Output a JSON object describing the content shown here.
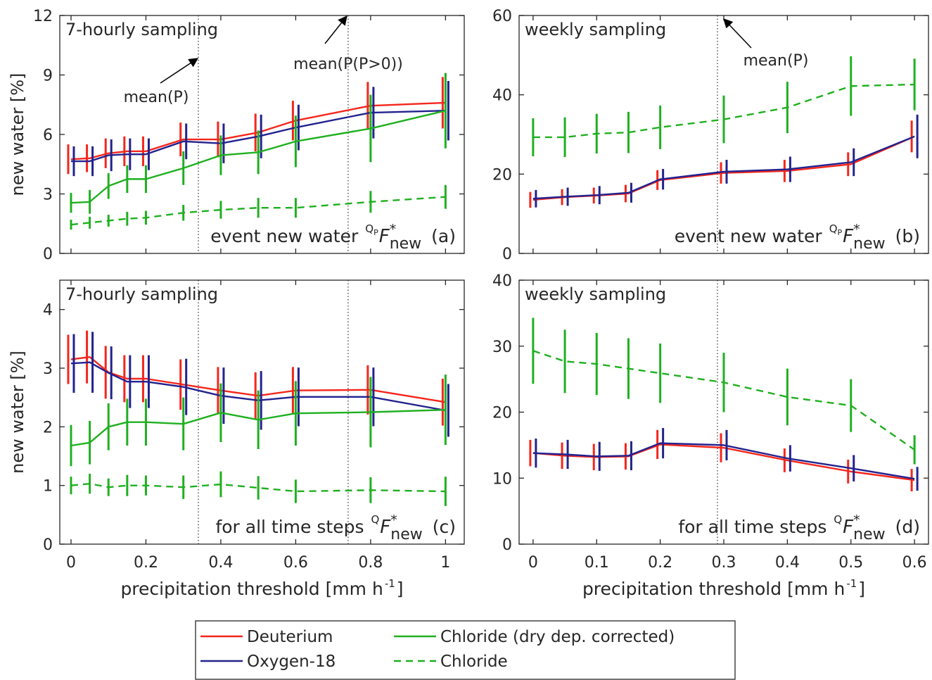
{
  "chart_data": [
    {
      "type": "line",
      "title": "7-hourly sampling",
      "ylabel": "new water [%]",
      "x": [
        0,
        0.05,
        0.1,
        0.15,
        0.2,
        0.3,
        0.4,
        0.5,
        0.6,
        0.8,
        1
      ],
      "xlim": [
        -0.03,
        1.05
      ],
      "xticks": [
        0,
        0.2,
        0.4,
        0.6,
        0.8,
        1
      ],
      "xtick_labels": false,
      "ylim": [
        0,
        12
      ],
      "yticks": [
        0,
        3,
        6,
        9,
        12
      ],
      "vlines": [
        0.34,
        0.74
      ],
      "annotations": [
        {
          "text": "mean(P)"
        },
        {
          "text": "mean(P(P>0))"
        }
      ],
      "panel_label": {
        "text": "event new water",
        "pre_sup": "Q",
        "pre_sup_sub": "P",
        "symbol": "F",
        "symbol_sup": "*",
        "symbol_sub": "new",
        "tag": "(a)"
      },
      "legend_position": "below",
      "series": [
        {
          "name": "Deuterium",
          "color": "#f5261c",
          "style": "solid",
          "values": [
            4.75,
            4.8,
            5.05,
            5.15,
            5.15,
            5.75,
            5.75,
            6.1,
            6.7,
            7.45,
            7.6
          ],
          "errors": [
            0.75,
            0.7,
            0.75,
            0.75,
            0.75,
            0.85,
            0.9,
            0.95,
            1.0,
            1.2,
            1.3
          ]
        },
        {
          "name": "Oxygen-18",
          "color": "#22228e",
          "style": "solid",
          "values": [
            4.65,
            4.65,
            4.95,
            5.0,
            5.0,
            5.65,
            5.55,
            5.9,
            6.35,
            7.1,
            7.2
          ],
          "errors": [
            0.75,
            0.75,
            0.8,
            0.8,
            0.8,
            0.9,
            1.0,
            1.1,
            1.15,
            1.3,
            1.5
          ]
        },
        {
          "name": "Chloride (dry dep. corrected)",
          "color": "#1fb01f",
          "style": "solid",
          "values": [
            2.55,
            2.6,
            3.4,
            3.75,
            3.75,
            4.3,
            4.95,
            5.1,
            5.65,
            6.3,
            7.2
          ],
          "errors": [
            0.5,
            0.6,
            0.65,
            0.7,
            0.7,
            0.85,
            1.0,
            1.1,
            1.3,
            1.7,
            1.9
          ]
        },
        {
          "name": "Chloride",
          "color": "#1fb01f",
          "style": "dashed",
          "values": [
            1.45,
            1.55,
            1.65,
            1.75,
            1.8,
            2.05,
            2.2,
            2.3,
            2.3,
            2.6,
            2.85
          ],
          "errors": [
            0.25,
            0.3,
            0.3,
            0.35,
            0.35,
            0.4,
            0.45,
            0.5,
            0.5,
            0.55,
            0.6
          ]
        }
      ]
    },
    {
      "type": "line",
      "title": "weekly sampling",
      "x": [
        0,
        0.05,
        0.1,
        0.15,
        0.2,
        0.3,
        0.4,
        0.5,
        0.6
      ],
      "xlim": [
        -0.022,
        0.622
      ],
      "xticks": [
        0,
        0.1,
        0.2,
        0.3,
        0.4,
        0.5,
        0.6
      ],
      "xtick_labels": false,
      "ylim": [
        0,
        60
      ],
      "yticks": [
        0,
        20,
        40,
        60
      ],
      "vlines": [
        0.29
      ],
      "annotations": [
        {
          "text": "mean(P)"
        }
      ],
      "panel_label": {
        "text": "event new water",
        "pre_sup": "Q",
        "pre_sup_sub": "P",
        "symbol": "F",
        "symbol_sup": "*",
        "symbol_sub": "new",
        "tag": "(b)"
      },
      "series": [
        {
          "name": "Deuterium",
          "color": "#f5261c",
          "style": "solid",
          "values": [
            13.5,
            14.2,
            14.6,
            15.1,
            18.5,
            20.3,
            20.8,
            22.5,
            29.5
          ],
          "errors": [
            2.0,
            2.0,
            2.0,
            2.2,
            2.5,
            2.7,
            2.8,
            3.0,
            4.0
          ]
        },
        {
          "name": "Oxygen-18",
          "color": "#22228e",
          "style": "solid",
          "values": [
            13.8,
            14.3,
            14.7,
            15.3,
            18.7,
            20.6,
            21.2,
            23.0,
            29.5
          ],
          "errors": [
            2.2,
            2.3,
            2.3,
            2.5,
            2.6,
            3.0,
            3.2,
            3.5,
            5.5
          ]
        },
        {
          "name": "Chloride",
          "color": "#1fb01f",
          "style": "dashed",
          "values": [
            29.3,
            29.3,
            30.2,
            30.5,
            31.8,
            33.8,
            36.8,
            42.2,
            42.6
          ],
          "errors": [
            4.8,
            5.0,
            5.0,
            5.2,
            5.5,
            6.0,
            6.5,
            7.5,
            6.5
          ]
        }
      ]
    },
    {
      "type": "line",
      "title": "7-hourly sampling",
      "ylabel": "new water [%]",
      "xlabel": "precipitation threshold [mm h",
      "xlabel_sup": "-1",
      "xlabel_end": "]",
      "x": [
        0,
        0.05,
        0.1,
        0.15,
        0.2,
        0.3,
        0.4,
        0.5,
        0.6,
        0.8,
        1
      ],
      "xlim": [
        -0.03,
        1.05
      ],
      "xticks": [
        0,
        0.2,
        0.4,
        0.6,
        0.8,
        1
      ],
      "ylim": [
        0,
        4.5
      ],
      "yticks": [
        0,
        1,
        2,
        3,
        4
      ],
      "vlines": [
        0.34,
        0.74
      ],
      "panel_label": {
        "text": "for all time steps",
        "pre_sup": "Q",
        "symbol": "F",
        "symbol_sup": "*",
        "symbol_sub": "new",
        "tag": "(c)"
      },
      "series": [
        {
          "name": "Deuterium",
          "color": "#f5261c",
          "style": "solid",
          "values": [
            3.15,
            3.19,
            2.93,
            2.82,
            2.82,
            2.72,
            2.62,
            2.53,
            2.62,
            2.63,
            2.42
          ],
          "errors": [
            0.42,
            0.45,
            0.45,
            0.4,
            0.4,
            0.43,
            0.4,
            0.4,
            0.4,
            0.42,
            0.4
          ]
        },
        {
          "name": "Oxygen-18",
          "color": "#22228e",
          "style": "solid",
          "values": [
            3.08,
            3.1,
            2.92,
            2.77,
            2.77,
            2.68,
            2.53,
            2.45,
            2.51,
            2.51,
            2.28
          ],
          "errors": [
            0.5,
            0.52,
            0.45,
            0.45,
            0.45,
            0.48,
            0.48,
            0.5,
            0.5,
            0.5,
            0.45
          ]
        },
        {
          "name": "Chloride (dry dep. corrected)",
          "color": "#1fb01f",
          "style": "solid",
          "values": [
            1.68,
            1.73,
            2.0,
            2.08,
            2.08,
            2.05,
            2.24,
            2.12,
            2.23,
            2.25,
            2.29
          ],
          "errors": [
            0.35,
            0.37,
            0.4,
            0.4,
            0.4,
            0.45,
            0.5,
            0.5,
            0.55,
            0.6,
            0.6
          ]
        },
        {
          "name": "Chloride",
          "color": "#1fb01f",
          "style": "dashed",
          "values": [
            1.0,
            1.03,
            0.97,
            1.0,
            1.0,
            0.97,
            1.02,
            0.96,
            0.9,
            0.92,
            0.9
          ],
          "errors": [
            0.15,
            0.17,
            0.15,
            0.18,
            0.17,
            0.2,
            0.22,
            0.2,
            0.2,
            0.22,
            0.25
          ]
        }
      ]
    },
    {
      "type": "line",
      "title": "weekly sampling",
      "xlabel": "precipitation threshold [mm h",
      "xlabel_sup": "-1",
      "xlabel_end": "]",
      "x": [
        0,
        0.05,
        0.1,
        0.15,
        0.2,
        0.3,
        0.4,
        0.5,
        0.6
      ],
      "xlim": [
        -0.022,
        0.622
      ],
      "xticks": [
        0,
        0.1,
        0.2,
        0.3,
        0.4,
        0.5,
        0.6
      ],
      "ylim": [
        0,
        40
      ],
      "yticks": [
        0,
        10,
        20,
        30,
        40
      ],
      "vlines": [
        0.29
      ],
      "panel_label": {
        "text": "for all time steps",
        "pre_sup": "Q",
        "symbol": "F",
        "symbol_sup": "*",
        "symbol_sub": "new",
        "tag": "(d)"
      },
      "series": [
        {
          "name": "Deuterium",
          "color": "#f5261c",
          "style": "solid",
          "values": [
            13.8,
            13.4,
            13.2,
            13.3,
            15.1,
            14.6,
            12.7,
            11.0,
            9.7
          ],
          "errors": [
            2.0,
            2.0,
            2.0,
            2.0,
            2.2,
            2.2,
            1.8,
            1.8,
            1.7
          ]
        },
        {
          "name": "Oxygen-18",
          "color": "#22228e",
          "style": "solid",
          "values": [
            13.8,
            13.6,
            13.3,
            13.4,
            15.3,
            15.0,
            13.0,
            11.5,
            9.9
          ],
          "errors": [
            2.2,
            2.2,
            2.2,
            2.2,
            2.3,
            2.3,
            2.0,
            2.0,
            1.8
          ]
        },
        {
          "name": "Chloride",
          "color": "#1fb01f",
          "style": "dashed",
          "values": [
            29.3,
            27.7,
            27.3,
            26.6,
            25.9,
            24.5,
            22.3,
            21.0,
            14.3
          ],
          "errors": [
            5.0,
            4.8,
            4.7,
            4.6,
            4.5,
            4.5,
            4.3,
            4.0,
            2.2
          ]
        }
      ]
    }
  ]
}
